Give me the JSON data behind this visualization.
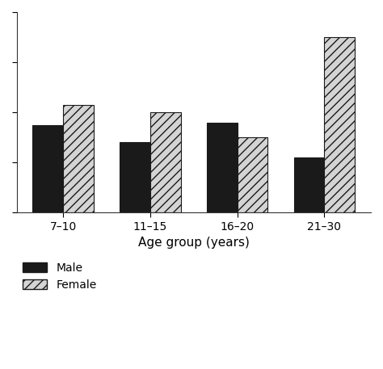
{
  "categories": [
    "7–10",
    "11–15",
    "16–20",
    "21–30"
  ],
  "male_values": [
    35,
    28,
    36,
    22
  ],
  "female_values": [
    43,
    40,
    30,
    70
  ],
  "male_color": "#1a1a1a",
  "female_hatch": "///",
  "female_facecolor": "#d4d4d4",
  "female_edgecolor": "#1a1a1a",
  "xlabel": "Age group (years)",
  "ylabel": "",
  "ylim": [
    0,
    80
  ],
  "bar_width": 0.35,
  "legend_male": "Male",
  "legend_female": "Female",
  "background_color": "#ffffff",
  "axis_fontsize": 11,
  "tick_fontsize": 10,
  "legend_fontsize": 10
}
